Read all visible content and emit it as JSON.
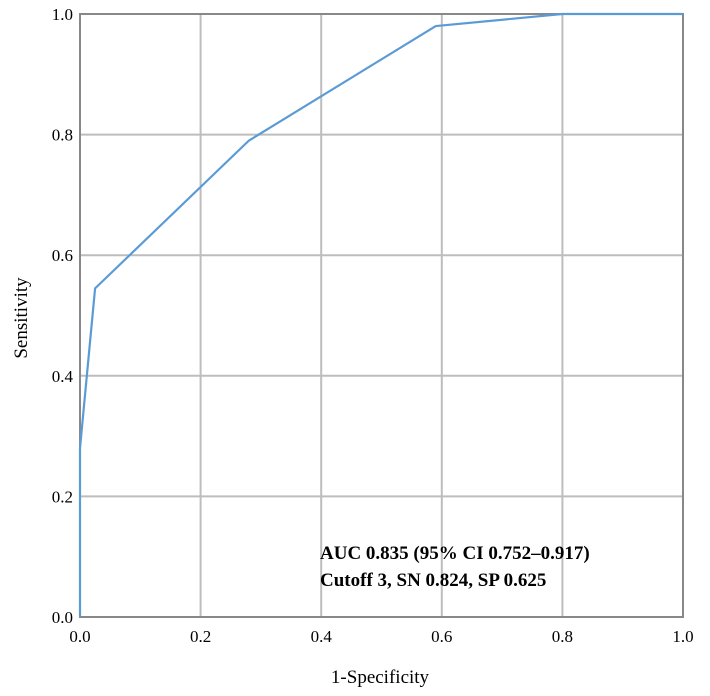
{
  "chart_data": {
    "type": "line",
    "title": "",
    "xlabel": "1-Specificity",
    "ylabel": "Sensitivity",
    "xlim": [
      0,
      1
    ],
    "ylim": [
      0,
      1
    ],
    "grid": true,
    "x_ticks": [
      "0.0",
      "0.2",
      "0.4",
      "0.6",
      "0.8",
      "1.0"
    ],
    "y_ticks": [
      "0.0",
      "0.2",
      "0.4",
      "0.6",
      "0.8",
      "1.0"
    ],
    "series": [
      {
        "color": "#5b9bd5",
        "points": [
          {
            "x": 0.0,
            "y": 0.0
          },
          {
            "x": 0.0,
            "y": 0.28
          },
          {
            "x": 0.025,
            "y": 0.545
          },
          {
            "x": 0.28,
            "y": 0.79
          },
          {
            "x": 0.59,
            "y": 0.98
          },
          {
            "x": 0.8,
            "y": 1.0
          },
          {
            "x": 1.0,
            "y": 1.0
          }
        ]
      }
    ],
    "annotations": [
      "AUC 0.835 (95% CI 0.752–0.917)",
      "Cutoff 3, SN 0.824, SP 0.625"
    ],
    "colors": {
      "grid": "#bdbdbd",
      "frame": "#888888",
      "line": "#5b9bd5"
    }
  }
}
